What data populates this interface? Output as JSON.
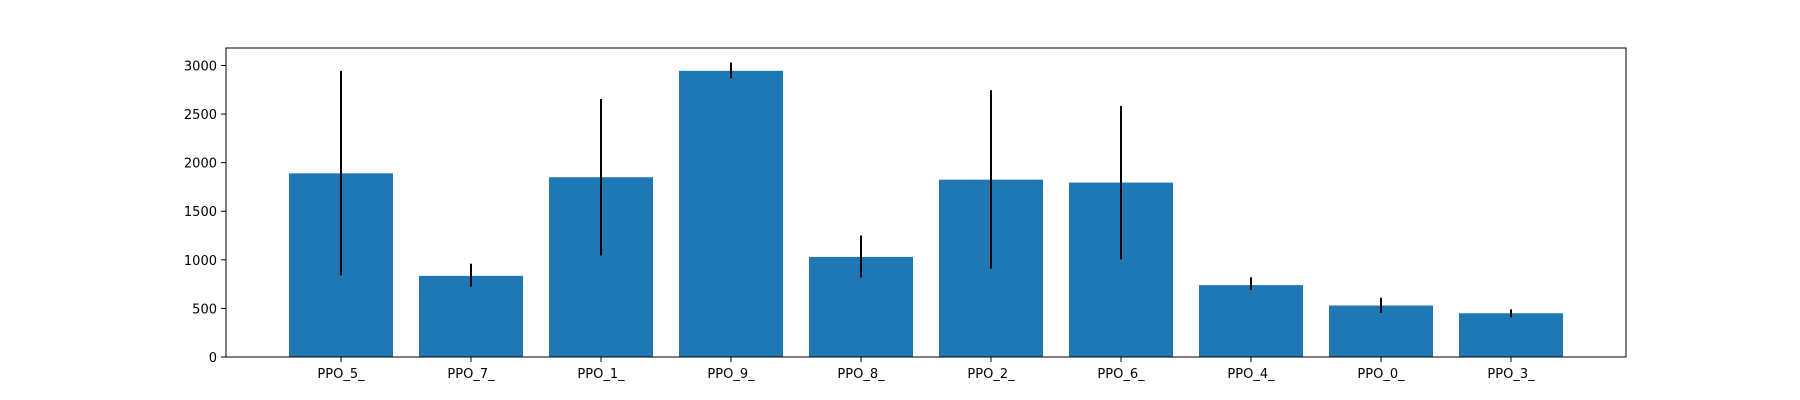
{
  "chart_data": {
    "type": "bar",
    "title": "",
    "xlabel": "",
    "ylabel": "",
    "categories": [
      "PPO_5_",
      "PPO_7_",
      "PPO_1_",
      "PPO_9_",
      "PPO_8_",
      "PPO_2_",
      "PPO_6_",
      "PPO_4_",
      "PPO_0_",
      "PPO_3_"
    ],
    "values": [
      1890,
      835,
      1850,
      2945,
      1030,
      1825,
      1795,
      740,
      530,
      450
    ],
    "error_low": [
      840,
      725,
      1045,
      2870,
      820,
      910,
      1005,
      690,
      455,
      410
    ],
    "error_high": [
      2945,
      960,
      2655,
      3030,
      1250,
      2745,
      2585,
      820,
      610,
      490
    ],
    "ylim": [
      0,
      3180
    ],
    "yticks": [
      0,
      500,
      1000,
      1500,
      2000,
      2500,
      3000
    ],
    "grid": false,
    "colors": {
      "bar": "#1f77b4",
      "error": "#000000",
      "axis": "#000000"
    }
  }
}
